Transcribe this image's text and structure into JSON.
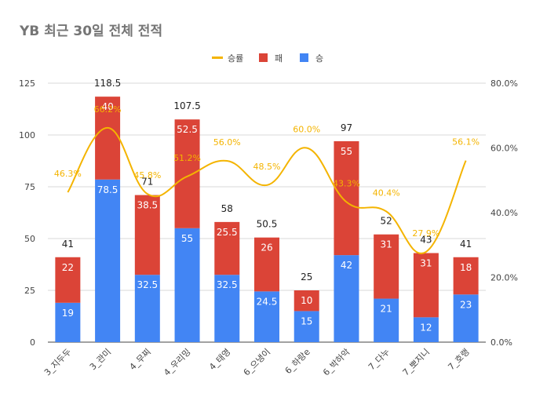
{
  "chart_data": {
    "type": "bar",
    "title": "YB 최근 30일 전체 전적",
    "categories": [
      "3_지두두",
      "3_관미",
      "4_무찌",
      "4_우리밍",
      "4_태영",
      "6_으냉이",
      "6_하랑e",
      "6_박하악",
      "7_다누",
      "7_뽀지니",
      "7_호랭"
    ],
    "legend_position": "top",
    "series": [
      {
        "name": "승",
        "type": "bar",
        "color": "#4285f4",
        "values": [
          19,
          78.5,
          32.5,
          55,
          32.5,
          24.5,
          15,
          42,
          21,
          12,
          23
        ]
      },
      {
        "name": "패",
        "type": "bar",
        "color": "#db4437",
        "values": [
          22,
          40,
          38.5,
          52.5,
          25.5,
          26,
          10,
          55,
          31,
          31,
          18
        ]
      },
      {
        "name": "승률",
        "type": "line",
        "axis": "right",
        "color": "#f4b400",
        "values": [
          46.3,
          66.2,
          45.8,
          51.2,
          56.0,
          48.5,
          60.0,
          43.3,
          40.4,
          27.9,
          56.1
        ]
      }
    ],
    "bar_labels": {
      "win": [
        "19",
        "78.5",
        "32.5",
        "55",
        "32.5",
        "24.5",
        "15",
        "42",
        "21",
        "12",
        "23"
      ],
      "loss": [
        "22",
        "40",
        "38.5",
        "52.5",
        "25.5",
        "26",
        "10",
        "55",
        "31",
        "31",
        "18"
      ],
      "total": [
        "41",
        "118.5",
        "71",
        "107.5",
        "58",
        "50.5",
        "25",
        "97",
        "52",
        "43",
        "41"
      ]
    },
    "rate_labels": [
      "46.3%",
      "66.2%",
      "45.8%",
      "51.2%",
      "56.0%",
      "48.5%",
      "60.0%",
      "43.3%",
      "40.4%",
      "27.9%",
      "56.1%"
    ],
    "y_left": {
      "min": 0,
      "max": 125,
      "ticks": [
        "0",
        "25",
        "50",
        "75",
        "100",
        "125"
      ]
    },
    "y_right": {
      "min": 0,
      "max": 80,
      "ticks": [
        "0.0%",
        "20.0%",
        "40.0%",
        "60.0%",
        "80.0%"
      ]
    },
    "grid": true
  }
}
